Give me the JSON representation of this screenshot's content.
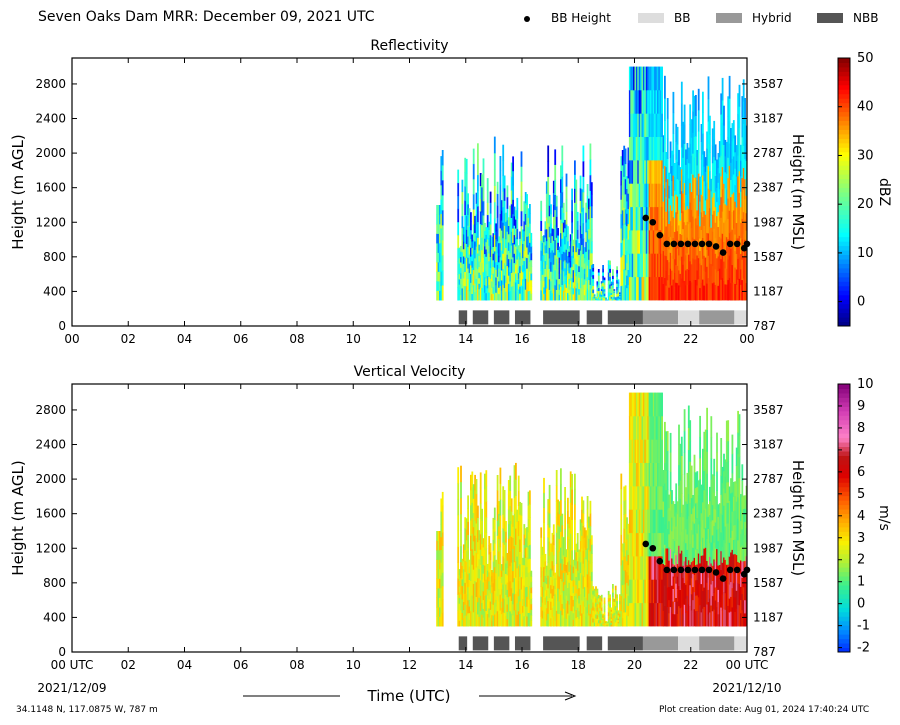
{
  "figure": {
    "title": "Seven Oaks Dam MRR:  December 09, 2021 UTC",
    "legend": [
      {
        "label": "BB Height",
        "kind": "dot",
        "color": "#000000"
      },
      {
        "label": "BB",
        "kind": "swatch",
        "color": "#dddddd"
      },
      {
        "label": "Hybrid",
        "kind": "swatch",
        "color": "#999999"
      },
      {
        "label": "NBB",
        "kind": "swatch",
        "color": "#555555"
      }
    ],
    "footer_left": "34.1148 N, 117.0875 W, 787 m",
    "footer_right": "Plot creation date: Aug 01, 2024 17:40:24 UTC",
    "xlabel": "Time (UTC)",
    "x_start_label": "2021/12/09",
    "x_end_label": "2021/12/10"
  },
  "chart_data": [
    {
      "type": "heatmap",
      "title": "Reflectivity",
      "xlabel": "",
      "ylabel": "Height (m AGL)",
      "ylabel_right": "Height (m MSL)",
      "colorbar_label": "dBZ",
      "xlim": [
        0,
        24
      ],
      "ylim": [
        0,
        3100
      ],
      "x_ticks": [
        "00",
        "02",
        "04",
        "06",
        "08",
        "10",
        "12",
        "14",
        "16",
        "18",
        "20",
        "22",
        "00"
      ],
      "y_ticks": [
        0,
        400,
        800,
        1200,
        1600,
        2000,
        2400,
        2800
      ],
      "y_ticks_right": [
        787,
        1187,
        1587,
        1987,
        2387,
        2787,
        3187,
        3587
      ],
      "colorbar_ticks": [
        0,
        10,
        20,
        30,
        40,
        50
      ],
      "colorbar_range": [
        -5,
        50
      ],
      "colormap": "jet",
      "bb_height": {
        "time": [
          20.4,
          20.65,
          20.9,
          21.15,
          21.4,
          21.65,
          21.9,
          22.15,
          22.4,
          22.65,
          22.9,
          23.15,
          23.4,
          23.65,
          23.9,
          24.0
        ],
        "height": [
          1250,
          1200,
          1050,
          950,
          950,
          950,
          950,
          950,
          950,
          950,
          920,
          850,
          950,
          950,
          900,
          950
        ]
      },
      "bb_type_bars": [
        {
          "start": 13.75,
          "end": 14.05,
          "type": "NBB"
        },
        {
          "start": 14.25,
          "end": 14.8,
          "type": "NBB"
        },
        {
          "start": 15.0,
          "end": 15.55,
          "type": "NBB"
        },
        {
          "start": 15.75,
          "end": 16.3,
          "type": "NBB"
        },
        {
          "start": 16.75,
          "end": 18.05,
          "type": "NBB"
        },
        {
          "start": 18.3,
          "end": 18.85,
          "type": "NBB"
        },
        {
          "start": 19.05,
          "end": 20.3,
          "type": "NBB"
        },
        {
          "start": 20.3,
          "end": 21.55,
          "type": "Hybrid"
        },
        {
          "start": 21.55,
          "end": 22.3,
          "type": "BB"
        },
        {
          "start": 22.3,
          "end": 23.55,
          "type": "Hybrid"
        },
        {
          "start": 23.55,
          "end": 24.0,
          "type": "BB"
        }
      ]
    },
    {
      "type": "heatmap",
      "title": "Vertical Velocity",
      "xlabel": "Time (UTC)",
      "ylabel": "Height (m AGL)",
      "ylabel_right": "Height (m MSL)",
      "colorbar_label": "m/s",
      "xlim": [
        0,
        24
      ],
      "ylim": [
        0,
        3100
      ],
      "x_ticks": [
        "00 UTC",
        "02",
        "04",
        "06",
        "08",
        "10",
        "12",
        "14",
        "16",
        "18",
        "20",
        "22",
        "00 UTC"
      ],
      "y_ticks": [
        0,
        400,
        800,
        1200,
        1600,
        2000,
        2400,
        2800
      ],
      "y_ticks_right": [
        787,
        1187,
        1587,
        1987,
        2387,
        2787,
        3187,
        3587
      ],
      "colorbar_ticks": [
        -2,
        -1,
        0,
        1,
        2,
        3,
        4,
        5,
        6,
        7,
        8,
        9,
        10
      ],
      "colorbar_range": [
        -2.2,
        10
      ],
      "colormap": "velocity",
      "bb_height": {
        "time": [
          20.4,
          20.65,
          20.9,
          21.15,
          21.4,
          21.65,
          21.9,
          22.15,
          22.4,
          22.65,
          22.9,
          23.15,
          23.4,
          23.65,
          23.9,
          24.0
        ],
        "height": [
          1250,
          1200,
          1050,
          950,
          950,
          950,
          950,
          950,
          950,
          950,
          920,
          850,
          950,
          950,
          900,
          950
        ]
      },
      "bb_type_bars": [
        {
          "start": 13.75,
          "end": 14.05,
          "type": "NBB"
        },
        {
          "start": 14.25,
          "end": 14.8,
          "type": "NBB"
        },
        {
          "start": 15.0,
          "end": 15.55,
          "type": "NBB"
        },
        {
          "start": 15.75,
          "end": 16.3,
          "type": "NBB"
        },
        {
          "start": 16.75,
          "end": 18.05,
          "type": "NBB"
        },
        {
          "start": 18.3,
          "end": 18.85,
          "type": "NBB"
        },
        {
          "start": 19.05,
          "end": 20.3,
          "type": "NBB"
        },
        {
          "start": 20.3,
          "end": 21.55,
          "type": "Hybrid"
        },
        {
          "start": 21.55,
          "end": 22.3,
          "type": "BB"
        },
        {
          "start": 22.3,
          "end": 23.55,
          "type": "Hybrid"
        },
        {
          "start": 23.55,
          "end": 24.0,
          "type": "BB"
        }
      ]
    }
  ]
}
